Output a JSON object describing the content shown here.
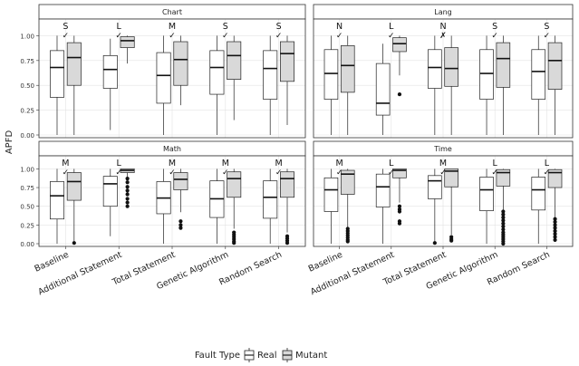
{
  "figure": {
    "ylabel": "APFD",
    "legend_title": "Fault Type",
    "legend_items": [
      {
        "name": "Real",
        "color": "#ffffff"
      },
      {
        "name": "Mutant",
        "color": "#d9d9d9"
      }
    ],
    "strategies": [
      "Baseline",
      "Additional Statement",
      "Total Statement",
      "Genetic Algorithm",
      "Random Search"
    ]
  },
  "chart_data": [
    {
      "type": "boxplot",
      "title": "Chart",
      "ylabel": "APFD",
      "ylim": [
        0,
        1.15
      ],
      "yticks": [
        "0.00",
        "0.25",
        "0.50",
        "0.75",
        "1.00"
      ],
      "categories": [
        "Baseline",
        "Additional Statement",
        "Total Statement",
        "Genetic Algorithm",
        "Random Search"
      ],
      "effect_labels": [
        "S",
        "L",
        "M",
        "S",
        "S"
      ],
      "significance": [
        "✓",
        "✓",
        "✓",
        "✓",
        "✓"
      ],
      "series": [
        {
          "name": "Real",
          "boxes": [
            {
              "min": 0.0,
              "q1": 0.38,
              "median": 0.68,
              "q3": 0.85,
              "max": 1.0,
              "outliers": []
            },
            {
              "min": 0.05,
              "q1": 0.47,
              "median": 0.66,
              "q3": 0.8,
              "max": 0.97,
              "outliers": []
            },
            {
              "min": 0.0,
              "q1": 0.32,
              "median": 0.6,
              "q3": 0.83,
              "max": 1.0,
              "outliers": []
            },
            {
              "min": 0.0,
              "q1": 0.41,
              "median": 0.68,
              "q3": 0.85,
              "max": 1.0,
              "outliers": []
            },
            {
              "min": 0.0,
              "q1": 0.36,
              "median": 0.67,
              "q3": 0.85,
              "max": 1.0,
              "outliers": []
            }
          ]
        },
        {
          "name": "Mutant",
          "boxes": [
            {
              "min": 0.0,
              "q1": 0.5,
              "median": 0.78,
              "q3": 0.93,
              "max": 1.0,
              "outliers": []
            },
            {
              "min": 0.72,
              "q1": 0.88,
              "median": 0.95,
              "q3": 0.99,
              "max": 1.0,
              "outliers": []
            },
            {
              "min": 0.3,
              "q1": 0.5,
              "median": 0.76,
              "q3": 0.94,
              "max": 1.0,
              "outliers": []
            },
            {
              "min": 0.15,
              "q1": 0.56,
              "median": 0.8,
              "q3": 0.94,
              "max": 1.0,
              "outliers": []
            },
            {
              "min": 0.1,
              "q1": 0.54,
              "median": 0.82,
              "q3": 0.94,
              "max": 1.0,
              "outliers": []
            }
          ]
        }
      ]
    },
    {
      "type": "boxplot",
      "title": "Lang",
      "ylabel": "APFD",
      "ylim": [
        0,
        1.15
      ],
      "yticks": [
        "0.00",
        "0.25",
        "0.50",
        "0.75",
        "1.00"
      ],
      "categories": [
        "Baseline",
        "Additional Statement",
        "Total Statement",
        "Genetic Algorithm",
        "Random Search"
      ],
      "effect_labels": [
        "N",
        "L",
        "N",
        "S",
        "S"
      ],
      "significance": [
        "✓",
        "✓",
        "✗",
        "✓",
        "✓"
      ],
      "series": [
        {
          "name": "Real",
          "boxes": [
            {
              "min": 0.0,
              "q1": 0.36,
              "median": 0.62,
              "q3": 0.86,
              "max": 1.0,
              "outliers": []
            },
            {
              "min": 0.0,
              "q1": 0.2,
              "median": 0.32,
              "q3": 0.72,
              "max": 0.92,
              "outliers": []
            },
            {
              "min": 0.0,
              "q1": 0.47,
              "median": 0.68,
              "q3": 0.86,
              "max": 1.0,
              "outliers": []
            },
            {
              "min": 0.0,
              "q1": 0.36,
              "median": 0.62,
              "q3": 0.86,
              "max": 1.0,
              "outliers": []
            },
            {
              "min": 0.0,
              "q1": 0.36,
              "median": 0.64,
              "q3": 0.86,
              "max": 1.0,
              "outliers": []
            }
          ]
        },
        {
          "name": "Mutant",
          "boxes": [
            {
              "min": 0.0,
              "q1": 0.43,
              "median": 0.7,
              "q3": 0.9,
              "max": 1.0,
              "outliers": []
            },
            {
              "min": 0.6,
              "q1": 0.84,
              "median": 0.92,
              "q3": 0.98,
              "max": 1.0,
              "outliers": [
                0.41
              ]
            },
            {
              "min": 0.0,
              "q1": 0.49,
              "median": 0.67,
              "q3": 0.88,
              "max": 1.0,
              "outliers": []
            },
            {
              "min": 0.0,
              "q1": 0.48,
              "median": 0.77,
              "q3": 0.93,
              "max": 1.0,
              "outliers": []
            },
            {
              "min": 0.0,
              "q1": 0.46,
              "median": 0.75,
              "q3": 0.93,
              "max": 1.0,
              "outliers": []
            }
          ]
        }
      ]
    },
    {
      "type": "boxplot",
      "title": "Math",
      "ylabel": "APFD",
      "ylim": [
        0,
        1.15
      ],
      "yticks": [
        "0.00",
        "0.25",
        "0.50",
        "0.75",
        "1.00"
      ],
      "categories": [
        "Baseline",
        "Additional Statement",
        "Total Statement",
        "Genetic Algorithm",
        "Random Search"
      ],
      "effect_labels": [
        "M",
        "L",
        "M",
        "M",
        "M"
      ],
      "significance": [
        "✓",
        "✓",
        "✓",
        "✓",
        "✓"
      ],
      "series": [
        {
          "name": "Real",
          "boxes": [
            {
              "min": 0.0,
              "q1": 0.33,
              "median": 0.64,
              "q3": 0.83,
              "max": 1.0,
              "outliers": []
            },
            {
              "min": 0.1,
              "q1": 0.5,
              "median": 0.8,
              "q3": 0.9,
              "max": 1.0,
              "outliers": []
            },
            {
              "min": 0.0,
              "q1": 0.4,
              "median": 0.61,
              "q3": 0.83,
              "max": 1.0,
              "outliers": []
            },
            {
              "min": 0.0,
              "q1": 0.35,
              "median": 0.6,
              "q3": 0.84,
              "max": 1.0,
              "outliers": []
            },
            {
              "min": 0.0,
              "q1": 0.34,
              "median": 0.62,
              "q3": 0.84,
              "max": 1.0,
              "outliers": []
            }
          ]
        },
        {
          "name": "Mutant",
          "boxes": [
            {
              "min": 0.02,
              "q1": 0.58,
              "median": 0.83,
              "q3": 0.95,
              "max": 1.0,
              "outliers": [
                0.01
              ]
            },
            {
              "min": 0.88,
              "q1": 0.95,
              "median": 0.98,
              "q3": 1.0,
              "max": 1.0,
              "outliers": [
                0.87,
                0.82,
                0.76,
                0.71,
                0.66,
                0.6,
                0.55,
                0.5
              ]
            },
            {
              "min": 0.42,
              "q1": 0.72,
              "median": 0.86,
              "q3": 0.95,
              "max": 1.0,
              "outliers": [
                0.3,
                0.25,
                0.21
              ]
            },
            {
              "min": 0.2,
              "q1": 0.62,
              "median": 0.87,
              "q3": 0.96,
              "max": 1.0,
              "outliers": [
                0.15,
                0.12,
                0.09,
                0.06,
                0.03,
                0.01
              ]
            },
            {
              "min": 0.15,
              "q1": 0.62,
              "median": 0.87,
              "q3": 0.96,
              "max": 1.0,
              "outliers": [
                0.1,
                0.07,
                0.04,
                0.01
              ]
            }
          ]
        }
      ]
    },
    {
      "type": "boxplot",
      "title": "Time",
      "ylabel": "APFD",
      "ylim": [
        0,
        1.15
      ],
      "yticks": [
        "0.00",
        "0.25",
        "0.50",
        "0.75",
        "1.00"
      ],
      "categories": [
        "Baseline",
        "Additional Statement",
        "Total Statement",
        "Genetic Algorithm",
        "Random Search"
      ],
      "effect_labels": [
        "M",
        "L",
        "M",
        "L",
        "L"
      ],
      "significance": [
        "✓",
        "✓",
        "✓",
        "✓",
        "✓"
      ],
      "series": [
        {
          "name": "Real",
          "boxes": [
            {
              "min": 0.0,
              "q1": 0.43,
              "median": 0.72,
              "q3": 0.88,
              "max": 1.0,
              "outliers": []
            },
            {
              "min": 0.0,
              "q1": 0.49,
              "median": 0.76,
              "q3": 0.93,
              "max": 1.0,
              "outliers": []
            },
            {
              "min": 0.0,
              "q1": 0.6,
              "median": 0.84,
              "q3": 0.91,
              "max": 1.0,
              "outliers": [
                0.01
              ]
            },
            {
              "min": 0.0,
              "q1": 0.44,
              "median": 0.72,
              "q3": 0.89,
              "max": 1.0,
              "outliers": []
            },
            {
              "min": 0.0,
              "q1": 0.45,
              "median": 0.72,
              "q3": 0.89,
              "max": 1.0,
              "outliers": []
            }
          ]
        },
        {
          "name": "Mutant",
          "boxes": [
            {
              "min": 0.22,
              "q1": 0.66,
              "median": 0.93,
              "q3": 0.98,
              "max": 1.0,
              "outliers": [
                0.2,
                0.17,
                0.14,
                0.11,
                0.08,
                0.05,
                0.03
              ]
            },
            {
              "min": 0.55,
              "q1": 0.88,
              "median": 0.98,
              "q3": 1.0,
              "max": 1.0,
              "outliers": [
                0.5,
                0.46,
                0.43,
                0.3,
                0.27
              ]
            },
            {
              "min": 0.12,
              "q1": 0.76,
              "median": 0.97,
              "q3": 1.0,
              "max": 1.0,
              "outliers": [
                0.09,
                0.06,
                0.04
              ]
            },
            {
              "min": 0.45,
              "q1": 0.77,
              "median": 0.95,
              "q3": 0.99,
              "max": 1.0,
              "outliers": [
                0.43,
                0.39,
                0.35,
                0.31,
                0.27,
                0.23,
                0.19,
                0.15,
                0.12,
                0.09,
                0.06,
                0.03,
                0.0
              ]
            },
            {
              "min": 0.35,
              "q1": 0.75,
              "median": 0.95,
              "q3": 0.99,
              "max": 1.0,
              "outliers": [
                0.33,
                0.29,
                0.25,
                0.21,
                0.17,
                0.13,
                0.09,
                0.05
              ]
            }
          ]
        }
      ]
    }
  ]
}
